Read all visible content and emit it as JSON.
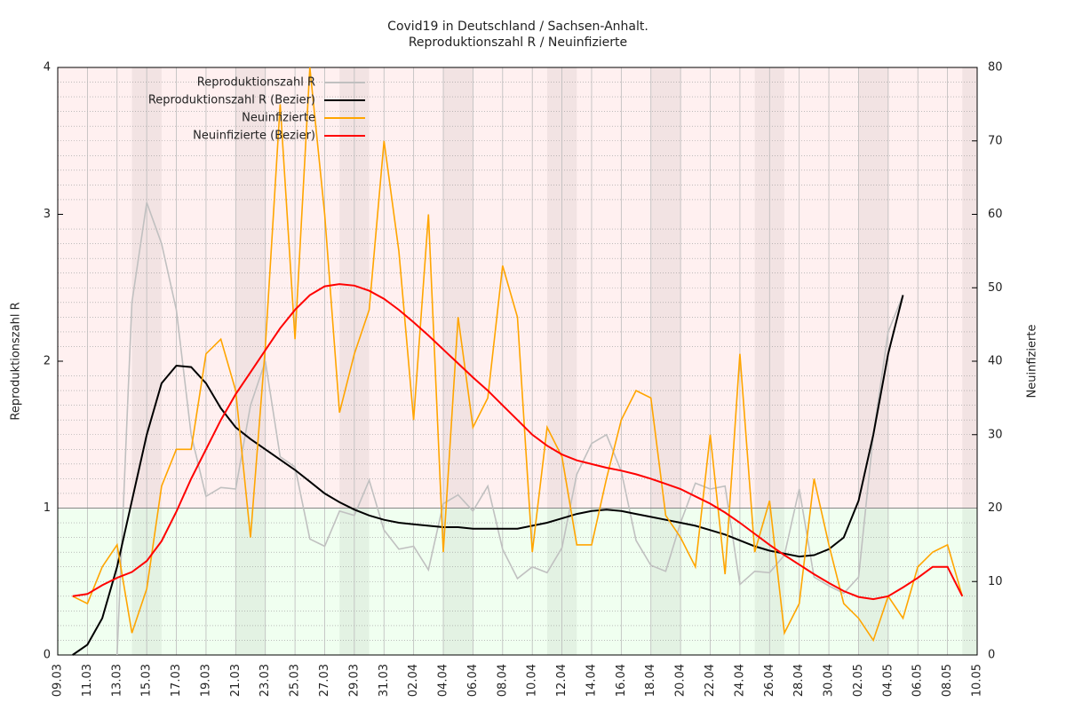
{
  "chart_data": {
    "type": "line",
    "title": "Covid19 in Deutschland / Sachsen-Anhalt.",
    "subtitle": "Reproduktionszahl R / Neuinfizierte",
    "y_label": "Reproduktionszahl R",
    "y2_label": "Neuinfizierte",
    "categories": [
      "09.03",
      null,
      "11.03",
      null,
      "13.03",
      null,
      "15.03",
      null,
      "17.03",
      null,
      "19.03",
      null,
      "21.03",
      null,
      "23.03",
      null,
      "25.03",
      null,
      "27.03",
      null,
      "29.03",
      null,
      "31.03",
      null,
      "02.04",
      null,
      "04.04",
      null,
      "06.04",
      null,
      "08.04",
      null,
      "10.04",
      null,
      "12.04",
      null,
      "14.04",
      null,
      "16.04",
      null,
      "18.04",
      null,
      "20.04",
      null,
      "22.04",
      null,
      "24.04",
      null,
      "26.04",
      null,
      "28.04",
      null,
      "30.04",
      null,
      "02.05",
      null,
      "04.05",
      null,
      "06.05",
      null,
      "08.05",
      null,
      "10.05"
    ],
    "ylim": [
      0,
      4
    ],
    "yticks": [
      0,
      1,
      2,
      3,
      4
    ],
    "y2lim": [
      0,
      80
    ],
    "y2ticks": [
      0,
      10,
      20,
      30,
      40,
      50,
      60,
      70,
      80
    ],
    "threshold": 1,
    "grid": true,
    "legend": "top-left",
    "series": [
      {
        "name": "Reproduktionszahl R",
        "color": "#c0c0c0",
        "axis": "y",
        "values": [
          null,
          null,
          null,
          null,
          0,
          2.4,
          3.08,
          2.8,
          2.35,
          1.5,
          1.08,
          1.14,
          1.13,
          1.7,
          2.0,
          1.35,
          1.28,
          0.79,
          0.74,
          0.98,
          0.95,
          1.19,
          0.85,
          0.72,
          0.74,
          0.58,
          1.03,
          1.09,
          0.98,
          1.15,
          0.72,
          0.52,
          0.6,
          0.56,
          0.73,
          1.23,
          1.44,
          1.5,
          1.25,
          0.78,
          0.61,
          0.57,
          0.9,
          1.17,
          1.13,
          1.15,
          0.48,
          0.57,
          0.56,
          0.68,
          1.13,
          0.53,
          0.47,
          0.42,
          0.53,
          1.5,
          2.2,
          2.45,
          null,
          null,
          null,
          null,
          null
        ]
      },
      {
        "name": "Reproduktionszahl R (Bezier)",
        "color": "#000000",
        "axis": "y",
        "values": [
          null,
          0,
          0.07,
          0.25,
          0.6,
          1.05,
          1.5,
          1.85,
          1.97,
          1.96,
          1.85,
          1.68,
          1.55,
          1.47,
          1.4,
          1.33,
          1.26,
          1.18,
          1.1,
          1.04,
          0.99,
          0.95,
          0.92,
          0.9,
          0.89,
          0.88,
          0.87,
          0.87,
          0.86,
          0.86,
          0.86,
          0.86,
          0.88,
          0.9,
          0.93,
          0.96,
          0.98,
          0.99,
          0.98,
          0.96,
          0.94,
          0.92,
          0.9,
          0.88,
          0.85,
          0.82,
          0.78,
          0.74,
          0.71,
          0.69,
          0.67,
          0.68,
          0.72,
          0.8,
          1.05,
          1.5,
          2.05,
          2.45,
          null,
          null,
          null,
          null,
          null
        ]
      },
      {
        "name": "Neuinfizierte",
        "color": "#ffa500",
        "axis": "y2",
        "values": [
          null,
          8,
          7,
          12,
          15,
          3,
          9,
          23,
          28,
          28,
          41,
          43,
          36,
          16,
          42,
          75,
          43,
          80,
          60,
          33,
          41,
          47,
          70,
          55,
          32,
          60,
          14,
          46,
          31,
          35,
          53,
          46,
          14,
          31,
          27,
          15,
          15,
          24,
          32,
          36,
          35,
          19,
          16,
          12,
          30,
          11,
          41,
          14,
          21,
          3,
          7,
          24,
          15,
          7,
          5,
          2,
          8,
          5,
          12,
          14,
          15,
          8,
          null
        ]
      },
      {
        "name": "Neuinfizierte (Bezier)",
        "color": "#ff0000",
        "axis": "y2",
        "values": [
          null,
          8,
          8.3,
          9.5,
          10.5,
          11.3,
          12.8,
          15.5,
          19.5,
          24,
          28,
          32,
          35.5,
          38.5,
          41.5,
          44.5,
          47,
          49,
          50.2,
          50.5,
          50.3,
          49.6,
          48.5,
          47,
          45.3,
          43.5,
          41.6,
          39.7,
          37.8,
          36,
          34,
          32,
          30,
          28.5,
          27.3,
          26.5,
          26,
          25.5,
          25.1,
          24.6,
          24,
          23.3,
          22.6,
          21.6,
          20.6,
          19.4,
          18,
          16.5,
          15,
          13.6,
          12.3,
          11,
          9.8,
          8.7,
          7.9,
          7.6,
          8,
          9.2,
          10.5,
          12,
          12,
          8,
          null
        ]
      }
    ]
  }
}
